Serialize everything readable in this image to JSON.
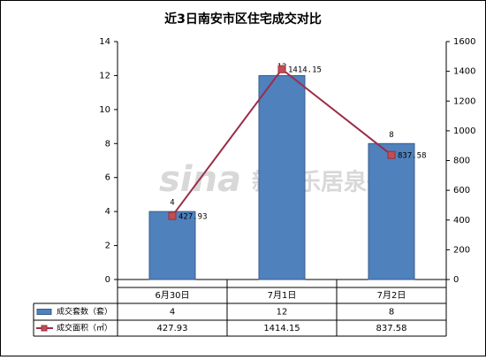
{
  "chart_data": {
    "type": "bar_line",
    "title": "近3日南安市区住宅成交对比",
    "categories": [
      "6月30日",
      "7月1日",
      "7月2日"
    ],
    "series": [
      {
        "name": "成交套数（套）",
        "type": "bar",
        "color": "#4f81bd",
        "values": [
          4,
          12,
          8
        ]
      },
      {
        "name": "成交面积（㎡）",
        "type": "line",
        "axis": "y2",
        "color": "#9b2d48",
        "values": [
          427.93,
          1414.15,
          837.58
        ]
      }
    ],
    "ylim": [
      0,
      14
    ],
    "yticks": [
      0,
      2,
      4,
      6,
      8,
      10,
      12,
      14
    ],
    "y2lim": [
      0,
      1600
    ],
    "y2ticks": [
      0,
      200,
      400,
      600,
      800,
      1000,
      1200,
      1400,
      1600
    ],
    "watermark": [
      "sina",
      "新浪乐居泉州"
    ]
  }
}
